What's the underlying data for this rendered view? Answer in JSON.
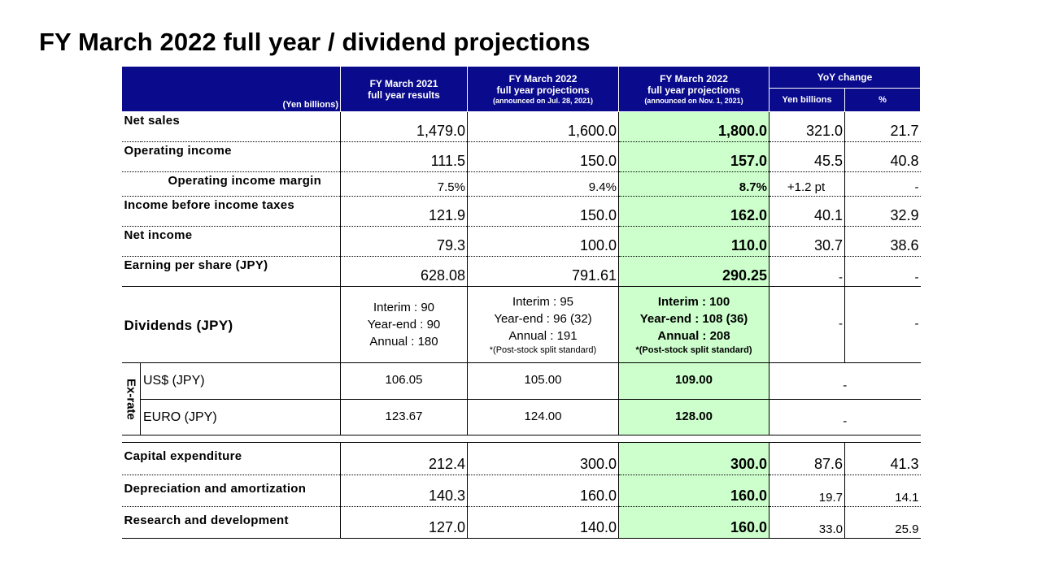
{
  "title": "FY March 2022 full year / dividend projections",
  "header": {
    "unit": "(Yen billions)",
    "col1": {
      "main": "FY March 2021",
      "sub": "full year results"
    },
    "col2": {
      "main": "FY March 2022",
      "sub": "full year projections",
      "note": "(announced on Jul. 28, 2021)"
    },
    "col3": {
      "main": "FY March 2022",
      "sub": "full year projections",
      "note": "(announced on Nov. 1, 2021)"
    },
    "yoy": "YoY change",
    "yoy_yen": "Yen billions",
    "yoy_pct": "%"
  },
  "rows": {
    "net_sales": {
      "label": "Net sales",
      "v1": "1,479.0",
      "v2": "1,600.0",
      "v3": "1,800.0",
      "y": "321.0",
      "p": "21.7"
    },
    "operating_income": {
      "label": "Operating income",
      "v1": "111.5",
      "v2": "150.0",
      "v3": "157.0",
      "y": "45.5",
      "p": "40.8"
    },
    "operating_margin": {
      "label": "Operating income margin",
      "v1": "7.5%",
      "v2": "9.4%",
      "v3": "8.7%",
      "y": "+1.2 pt",
      "p": "-"
    },
    "income_before_tax": {
      "label": "Income before income taxes",
      "v1": "121.9",
      "v2": "150.0",
      "v3": "162.0",
      "y": "40.1",
      "p": "32.9"
    },
    "net_income": {
      "label": "Net income",
      "v1": "79.3",
      "v2": "100.0",
      "v3": "110.0",
      "y": "30.7",
      "p": "38.6"
    },
    "eps": {
      "label": "Earning per share (JPY)",
      "v1": "628.08",
      "v2": "791.61",
      "v3": "290.25",
      "y": "-",
      "p": "-"
    }
  },
  "dividends": {
    "label": "Dividends (JPY)",
    "c1": {
      "interim": "Interim : 90",
      "yearend": "Year-end : 90",
      "annual": "Annual : 180"
    },
    "c2": {
      "interim": "Interim : 95",
      "yearend": "Year-end : 96 (32)",
      "annual": "Annual : 191",
      "note": "*(Post-stock split standard)"
    },
    "c3": {
      "interim": "Interim : 100",
      "yearend": "Year-end : 108 (36)",
      "annual": "Annual : 208",
      "note": "*(Post-stock split standard)"
    },
    "y": "-",
    "p": "-"
  },
  "exrate": {
    "label": "Ex-rate",
    "usd": {
      "label": "US$ (JPY)",
      "v1": "106.05",
      "v2": "105.00",
      "v3": "109.00",
      "yoy": "-"
    },
    "eur": {
      "label": "EURO (JPY)",
      "v1": "123.67",
      "v2": "124.00",
      "v3": "128.00",
      "yoy": "-"
    }
  },
  "rows2": {
    "capex": {
      "label": "Capital expenditure",
      "v1": "212.4",
      "v2": "300.0",
      "v3": "300.0",
      "y": "87.6",
      "p": "41.3"
    },
    "depreciation": {
      "label": "Depreciation and amortization",
      "v1": "140.3",
      "v2": "160.0",
      "v3": "160.0",
      "y": "19.7",
      "p": "14.1"
    },
    "rnd": {
      "label": "Research and development",
      "v1": "127.0",
      "v2": "140.0",
      "v3": "160.0",
      "y": "33.0",
      "p": "25.9"
    }
  },
  "colors": {
    "header_bg": "#0a0a8c",
    "highlight": "#ccffcc"
  }
}
